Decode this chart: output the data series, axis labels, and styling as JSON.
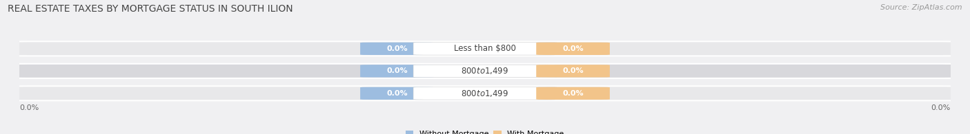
{
  "title": "REAL ESTATE TAXES BY MORTGAGE STATUS IN SOUTH ILION",
  "source": "Source: ZipAtlas.com",
  "categories": [
    "Less than $800",
    "$800 to $1,499",
    "$800 to $1,499"
  ],
  "without_mortgage_values": [
    "0.0%",
    "0.0%",
    "0.0%"
  ],
  "with_mortgage_values": [
    "0.0%",
    "0.0%",
    "0.0%"
  ],
  "without_mortgage_color": "#9dbde0",
  "with_mortgage_color": "#f2c48a",
  "bar_bg_light": "#e8e8ea",
  "bar_bg_dark": "#d8d8dc",
  "legend_without": "Without Mortgage",
  "legend_with": "With Mortgage",
  "title_fontsize": 10,
  "source_fontsize": 8,
  "label_fontsize": 8,
  "category_fontsize": 8.5,
  "value_fontsize": 8,
  "background_color": "#f0f0f2",
  "row_bg_colors": [
    "#e8e8ea",
    "#d8d8dc",
    "#e8e8ea"
  ],
  "axis_label_left": "0.0%",
  "axis_label_right": "0.0%"
}
